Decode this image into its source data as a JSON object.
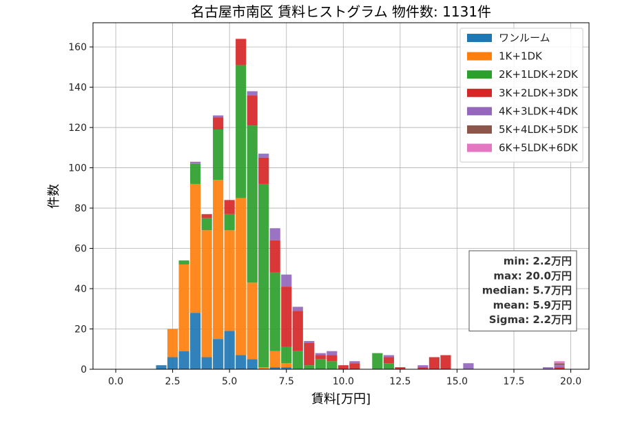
{
  "chart_data": {
    "type": "bar",
    "title": "名古屋市南区 賃料ヒストグラム  物件数: 1131件",
    "xlabel": "賃料[万円]",
    "ylabel": "件数",
    "xlim": [
      -1.0,
      20.8
    ],
    "ylim": [
      0,
      172
    ],
    "xticks": [
      0.0,
      2.5,
      5.0,
      7.5,
      10.0,
      12.5,
      15.0,
      17.5,
      20.0
    ],
    "xtick_labels": [
      "0.0",
      "2.5",
      "5.0",
      "7.5",
      "10.0",
      "12.5",
      "15.0",
      "17.5",
      "20.0"
    ],
    "yticks": [
      0,
      20,
      40,
      60,
      80,
      100,
      120,
      140,
      160
    ],
    "ytick_labels": [
      "0",
      "20",
      "40",
      "60",
      "80",
      "100",
      "120",
      "140",
      "160"
    ],
    "grid": true,
    "stacked": true,
    "bar_width": 0.46,
    "legend_position": "top-right",
    "x": [
      2.0,
      2.5,
      3.0,
      3.5,
      4.0,
      4.5,
      5.0,
      5.5,
      6.0,
      6.5,
      7.0,
      7.5,
      8.0,
      8.5,
      9.0,
      9.5,
      10.0,
      10.5,
      11.5,
      12.0,
      12.5,
      13.5,
      14.0,
      14.5,
      15.5,
      19.0,
      19.5
    ],
    "series": [
      {
        "name": "ワンルーム",
        "color": "#1f77b4",
        "values": [
          2,
          6,
          9,
          28,
          6,
          15,
          19,
          7,
          5,
          0,
          1,
          1,
          0,
          0,
          0,
          0,
          0,
          0,
          0,
          0,
          0,
          0,
          0,
          0,
          0,
          0,
          0
        ]
      },
      {
        "name": "1K+1DK",
        "color": "#ff7f0e",
        "values": [
          0,
          14,
          43,
          64,
          63,
          79,
          50,
          78,
          38,
          1,
          8,
          2,
          0,
          0,
          0,
          0,
          0,
          0,
          0,
          0,
          0,
          0,
          0,
          0,
          0,
          0,
          0
        ]
      },
      {
        "name": "2K+1LDK+2DK",
        "color": "#2ca02c",
        "values": [
          0,
          0,
          2,
          10,
          6,
          25,
          8,
          66,
          78,
          91,
          39,
          8,
          9,
          2,
          5,
          4,
          0,
          0,
          8,
          3,
          0,
          0,
          0,
          0,
          0,
          0,
          0
        ]
      },
      {
        "name": "3K+2LDK+3DK",
        "color": "#d62728",
        "values": [
          0,
          0,
          0,
          0,
          2,
          6,
          7,
          13,
          15,
          13,
          16,
          30,
          20,
          11,
          2,
          3,
          2,
          3,
          0,
          3,
          1,
          1,
          6,
          7,
          0,
          0,
          1
        ]
      },
      {
        "name": "4K+3LDK+4DK",
        "color": "#9467bd",
        "values": [
          0,
          0,
          0,
          1,
          0,
          1,
          0,
          0,
          2,
          2,
          6,
          6,
          2,
          1,
          1,
          2,
          0,
          1,
          0,
          1,
          0,
          1,
          0,
          0,
          3,
          1,
          1
        ]
      },
      {
        "name": "5K+4LDK+5DK",
        "color": "#8c564b",
        "values": [
          0,
          0,
          0,
          0,
          0,
          0,
          0,
          0,
          0,
          0,
          0,
          0,
          0,
          0,
          0,
          0,
          0,
          0,
          0,
          0,
          0,
          0,
          0,
          0,
          0,
          0,
          1
        ]
      },
      {
        "name": "6K+5LDK+6DK",
        "color": "#e377c2",
        "values": [
          0,
          0,
          0,
          0,
          0,
          0,
          0,
          0,
          0,
          0,
          0,
          0,
          0,
          0,
          0,
          0,
          0,
          0,
          0,
          0,
          0,
          0,
          0,
          0,
          0,
          0,
          1
        ]
      }
    ],
    "annotation": {
      "lines": [
        "min: 2.2万円",
        "max: 20.0万円",
        "median: 5.7万円",
        "mean: 5.9万円",
        "Sigma: 2.2万円"
      ]
    }
  }
}
